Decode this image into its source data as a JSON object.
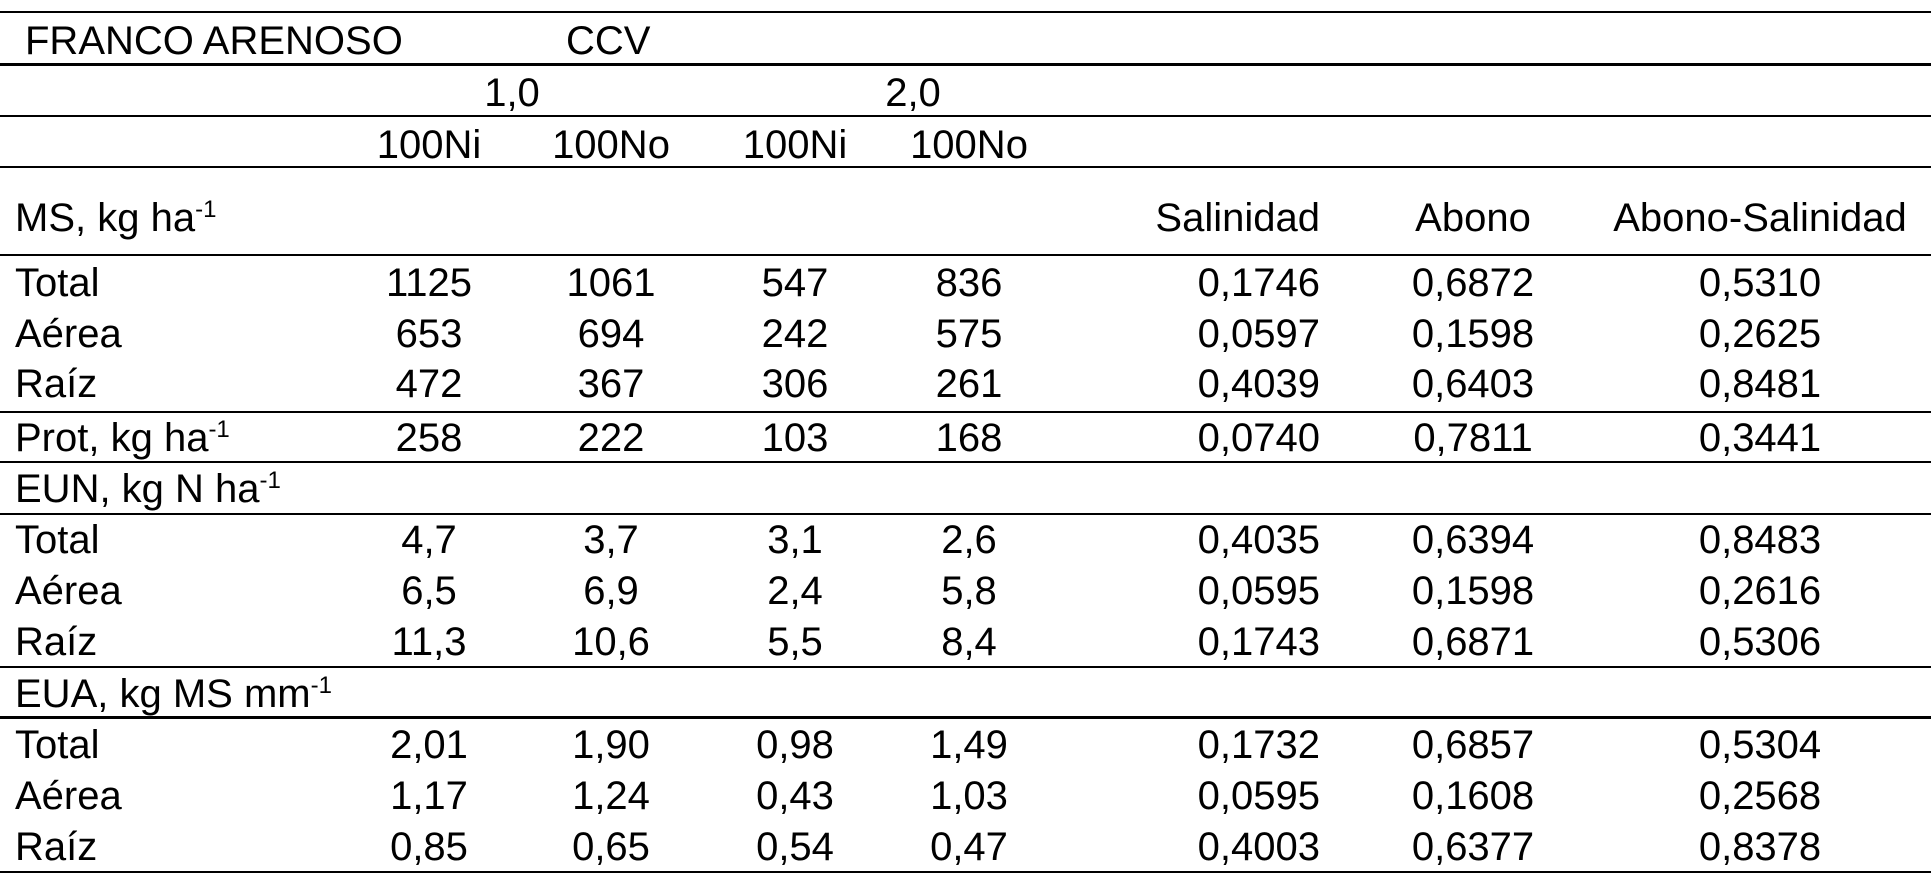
{
  "title": {
    "soil": "FRANCO ARENOSO",
    "factor": "CCV"
  },
  "ccv_levels": [
    "1,0",
    "2,0"
  ],
  "treatments": [
    "100Ni",
    "100No",
    "100Ni",
    "100No"
  ],
  "pvalue_headers": [
    "Salinidad",
    "Abono",
    "Abono-Salinidad"
  ],
  "sections": [
    {
      "label": "MS, kg ha",
      "sup": "-1",
      "rows": [
        {
          "label": "Total",
          "values": [
            "1125",
            "1061",
            "547",
            "836"
          ],
          "p": [
            "0,1746",
            "0,6872",
            "0,5310"
          ]
        },
        {
          "label": "Aérea",
          "values": [
            "653",
            "694",
            "242",
            "575"
          ],
          "p": [
            "0,0597",
            "0,1598",
            "0,2625"
          ]
        },
        {
          "label": "Raíz",
          "values": [
            "472",
            "367",
            "306",
            "261"
          ],
          "p": [
            "0,4039",
            "0,6403",
            "0,8481"
          ]
        }
      ]
    },
    {
      "label": "Prot, kg ha",
      "sup": "-1",
      "values": [
        "258",
        "222",
        "103",
        "168"
      ],
      "p": [
        "0,0740",
        "0,7811",
        "0,3441"
      ]
    },
    {
      "label": "EUN, kg N ha",
      "sup": "-1",
      "rows": [
        {
          "label": "Total",
          "values": [
            "4,7",
            "3,7",
            "3,1",
            "2,6"
          ],
          "p": [
            "0,4035",
            "0,6394",
            "0,8483"
          ]
        },
        {
          "label": "Aérea",
          "values": [
            "6,5",
            "6,9",
            "2,4",
            "5,8"
          ],
          "p": [
            "0,0595",
            "0,1598",
            "0,2616"
          ]
        },
        {
          "label": "Raíz",
          "values": [
            "11,3",
            "10,6",
            "5,5",
            "8,4"
          ],
          "p": [
            "0,1743",
            "0,6871",
            "0,5306"
          ]
        }
      ]
    },
    {
      "label": "EUA, kg MS mm",
      "sup": "-1",
      "rows": [
        {
          "label": "Total",
          "values": [
            "2,01",
            "1,90",
            "0,98",
            "1,49"
          ],
          "p": [
            "0,1732",
            "0,6857",
            "0,5304"
          ]
        },
        {
          "label": "Aérea",
          "values": [
            "1,17",
            "1,24",
            "0,43",
            "1,03"
          ],
          "p": [
            "0,0595",
            "0,1608",
            "0,2568"
          ]
        },
        {
          "label": "Raíz",
          "values": [
            "0,85",
            "0,65",
            "0,54",
            "0,47"
          ],
          "p": [
            "0,4003",
            "0,6377",
            "0,8378"
          ]
        }
      ]
    }
  ]
}
